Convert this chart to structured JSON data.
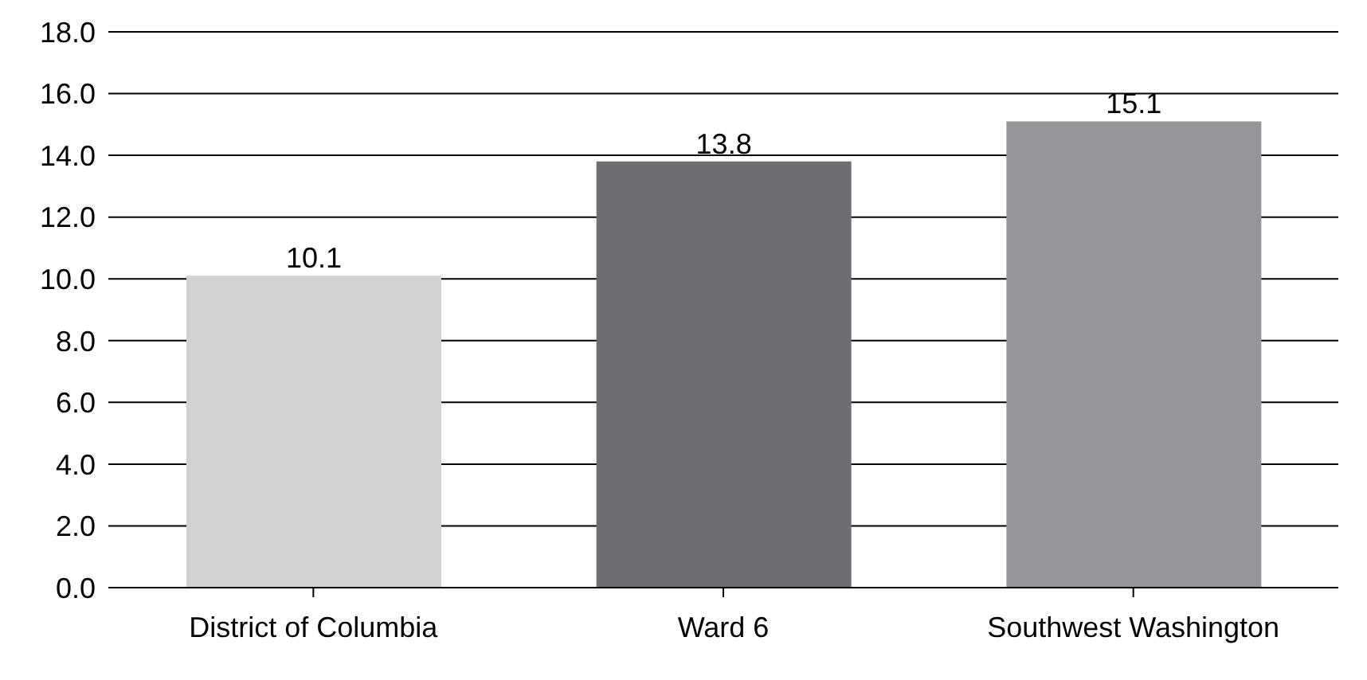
{
  "chart_data": {
    "type": "bar",
    "categories": [
      "District of Columbia",
      "Ward 6",
      "Southwest Washington"
    ],
    "values": [
      10.1,
      13.8,
      15.1
    ],
    "colors": [
      "#d1d2d4",
      "#6d6e71",
      "#939598"
    ],
    "ylim": [
      0,
      18
    ],
    "yticks": [
      {
        "value": 0,
        "label": "0.0"
      },
      {
        "value": 2,
        "label": "2.0"
      },
      {
        "value": 4,
        "label": "4.0"
      },
      {
        "value": 6,
        "label": "6.0"
      },
      {
        "value": 8,
        "label": "8.0"
      },
      {
        "value": 10,
        "label": "10.0"
      },
      {
        "value": 12,
        "label": "12.0"
      },
      {
        "value": 14,
        "label": "14.0"
      },
      {
        "value": 16,
        "label": "16.0"
      },
      {
        "value": 18,
        "label": "18.0"
      }
    ],
    "grid": "y",
    "data_labels": true
  }
}
